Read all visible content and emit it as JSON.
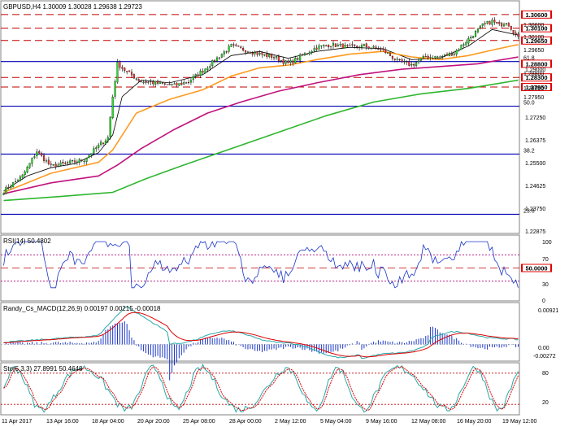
{
  "chart_data": [
    {
      "type": "candlestick",
      "title": "GBPUSD,H4  1.30009 1.30028 1.29638 1.29723",
      "symbol": "GBPUSD",
      "timeframe": "H4",
      "ohlc_header": {
        "open": 1.30009,
        "high": 1.30028,
        "low": 1.29638,
        "close": 1.29723
      },
      "ylim": [
        1.226,
        1.311
      ],
      "y_ticks": [
        "1.30600",
        "1.30100",
        "1.29650",
        "1.29000",
        "1.28800",
        "1.28300",
        "1.27950",
        "1.27250",
        "1.26375",
        "1.25500",
        "1.24625",
        "1.23750",
        "1.22875"
      ],
      "x_ticks": [
        "11 Apr 2017",
        "13 Apr 16:00",
        "18 Apr 04:00",
        "20 Apr 20:00",
        "25 Apr 08:00",
        "28 Apr 00:00",
        "2 May 12:00",
        "5 May 04:00",
        "9 May 16:00",
        "12 May 08:00",
        "16 May 20:00",
        "19 May 12:00"
      ],
      "price_labels": [
        {
          "value": 1.306,
          "text": "1.30600"
        },
        {
          "value": 1.301,
          "text": "1.30100"
        },
        {
          "value": 1.2965,
          "text": "1.29650"
        },
        {
          "value": 1.288,
          "text": "1.28800"
        },
        {
          "value": 1.283,
          "text": "1.28300"
        },
        {
          "value": 1.2795,
          "text": "1.27950"
        }
      ],
      "fib_levels": [
        {
          "label": "61.8",
          "value": 1.2888
        },
        {
          "label": "50.0",
          "value": 1.2725
        },
        {
          "label": "38.2",
          "value": 1.255
        },
        {
          "label": "23.6",
          "value": 1.233
        }
      ],
      "red_dashed_levels": [
        1.306,
        1.301,
        1.2965,
        1.283,
        1.2795
      ],
      "blue_solid_levels": [
        1.2888,
        1.2725,
        1.255,
        1.233
      ],
      "anchors": [
        [
          0,
          1.2415
        ],
        [
          8,
          1.247
        ],
        [
          14,
          1.256
        ],
        [
          20,
          1.2505
        ],
        [
          26,
          1.2515
        ],
        [
          34,
          1.253
        ],
        [
          40,
          1.258
        ],
        [
          44,
          1.261
        ],
        [
          46,
          1.276
        ],
        [
          48,
          1.288
        ],
        [
          52,
          1.285
        ],
        [
          58,
          1.2815
        ],
        [
          64,
          1.281
        ],
        [
          72,
          1.28
        ],
        [
          78,
          1.2815
        ],
        [
          84,
          1.2855
        ],
        [
          90,
          1.29
        ],
        [
          96,
          1.2945
        ],
        [
          102,
          1.293
        ],
        [
          108,
          1.2915
        ],
        [
          114,
          1.2905
        ],
        [
          120,
          1.288
        ],
        [
          126,
          1.291
        ],
        [
          132,
          1.294
        ],
        [
          138,
          1.295
        ],
        [
          146,
          1.294
        ],
        [
          152,
          1.2945
        ],
        [
          160,
          1.293
        ],
        [
          166,
          1.289
        ],
        [
          172,
          1.2875
        ],
        [
          178,
          1.2905
        ],
        [
          184,
          1.2905
        ],
        [
          190,
          1.292
        ],
        [
          196,
          1.297
        ],
        [
          202,
          1.302
        ],
        [
          206,
          1.3035
        ],
        [
          209,
          1.302
        ],
        [
          212,
          1.3035
        ],
        [
          215,
          1.3
        ],
        [
          217,
          1.2972
        ]
      ],
      "moving_averages": [
        {
          "color": "#000000",
          "period_hint": "fast",
          "points": [
            [
              0,
              1.2415
            ],
            [
              10,
              1.247
            ],
            [
              20,
              1.25
            ],
            [
              30,
              1.2515
            ],
            [
              40,
              1.2555
            ],
            [
              46,
              1.262
            ],
            [
              50,
              1.276
            ],
            [
              58,
              1.282
            ],
            [
              70,
              1.281
            ],
            [
              84,
              1.284
            ],
            [
              96,
              1.291
            ],
            [
              108,
              1.2925
            ],
            [
              120,
              1.29
            ],
            [
              132,
              1.2925
            ],
            [
              146,
              1.294
            ],
            [
              160,
              1.2935
            ],
            [
              172,
              1.2895
            ],
            [
              184,
              1.29
            ],
            [
              196,
              1.2945
            ],
            [
              206,
              1.3005
            ],
            [
              217,
              1.2985
            ]
          ]
        },
        {
          "color": "#ff9a1e",
          "period_hint": "medium",
          "points": [
            [
              0,
              1.241
            ],
            [
              20,
              1.248
            ],
            [
              40,
              1.252
            ],
            [
              46,
              1.2565
            ],
            [
              56,
              1.27
            ],
            [
              70,
              1.275
            ],
            [
              84,
              1.2785
            ],
            [
              96,
              1.2835
            ],
            [
              108,
              1.2865
            ],
            [
              120,
              1.2875
            ],
            [
              132,
              1.2895
            ],
            [
              146,
              1.2915
            ],
            [
              160,
              1.2925
            ],
            [
              172,
              1.2905
            ],
            [
              184,
              1.2895
            ],
            [
              196,
              1.291
            ],
            [
              206,
              1.293
            ],
            [
              217,
              1.295
            ]
          ]
        },
        {
          "color": "#c0137e",
          "period_hint": "slow",
          "points": [
            [
              0,
              1.2405
            ],
            [
              20,
              1.2445
            ],
            [
              40,
              1.247
            ],
            [
              48,
              1.251
            ],
            [
              58,
              1.257
            ],
            [
              72,
              1.264
            ],
            [
              86,
              1.27
            ],
            [
              100,
              1.274
            ],
            [
              116,
              1.278
            ],
            [
              132,
              1.281
            ],
            [
              150,
              1.284
            ],
            [
              168,
              1.286
            ],
            [
              184,
              1.287
            ],
            [
              200,
              1.288
            ],
            [
              217,
              1.2905
            ]
          ]
        },
        {
          "color": "#2fb62f",
          "period_hint": "very-slow",
          "points": [
            [
              0,
              1.238
            ],
            [
              24,
              1.2395
            ],
            [
              46,
              1.241
            ],
            [
              60,
              1.246
            ],
            [
              76,
              1.251
            ],
            [
              96,
              1.257
            ],
            [
              116,
              1.263
            ],
            [
              136,
              1.269
            ],
            [
              156,
              1.274
            ],
            [
              176,
              1.277
            ],
            [
              196,
              1.279
            ],
            [
              217,
              1.282
            ]
          ]
        }
      ]
    },
    {
      "type": "line",
      "title": "RSI(14) 50.4802",
      "ylim": [
        0,
        100
      ],
      "y_ticks": [
        "100",
        "70",
        "50",
        "30",
        "0"
      ],
      "levels": [
        70,
        50,
        30
      ],
      "current_label": "50.0000"
    },
    {
      "type": "bar",
      "title": "Randy_Cs_MACD(12,26,9) 0.00197 0.00215 -0.00018",
      "ylim": [
        -0.004,
        0.01
      ],
      "y_ticks": [
        "0.00921",
        "0.00",
        "-0.00272"
      ]
    },
    {
      "type": "line",
      "title": "Sto(5,3,3) 27.8991 50.4648",
      "ylim": [
        0,
        100
      ],
      "y_ticks": [
        "80",
        "20"
      ],
      "levels": [
        80,
        20
      ]
    }
  ]
}
